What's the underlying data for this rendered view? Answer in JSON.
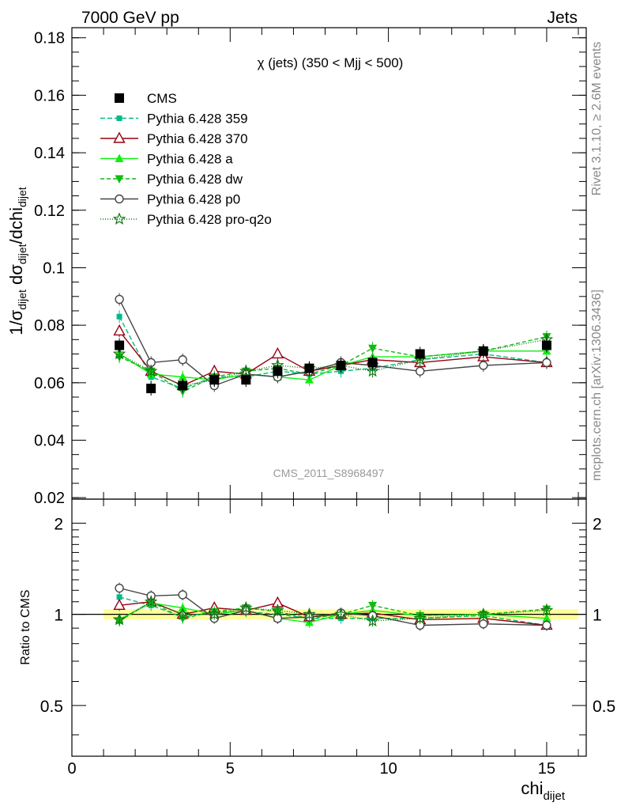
{
  "header": {
    "left": "7000 GeV pp",
    "right": "Jets"
  },
  "side_labels": {
    "rivet": "Rivet 3.1.10, ≥ 2.6M events",
    "mcplots": "mcplots.cern.ch [arXiv:1306.3436]"
  },
  "chart_data": [
    {
      "type": "scatter",
      "panel": "main",
      "title": "χ (jets) (350 < Mjj <  500)",
      "watermark": "CMS_2011_S8968497",
      "ylabel": "1/σ_dijet dσ_dijet/dchi_dijet",
      "xlabel": "",
      "xlim": [
        0,
        16.25
      ],
      "ylim": [
        0.0195,
        0.1835
      ],
      "yticks": [
        0.02,
        0.04,
        0.06,
        0.08,
        0.1,
        0.12,
        0.14,
        0.16,
        0.18
      ],
      "ytick_labels": [
        "0.02",
        "0.04",
        "0.06",
        "0.08",
        "0.1",
        "0.12",
        "0.14",
        "0.16",
        "0.18"
      ],
      "legend_position": "top-left",
      "x": [
        1.5,
        2.5,
        3.5,
        4.5,
        5.5,
        6.5,
        7.5,
        8.5,
        9.5,
        11.0,
        13.0,
        15.0
      ],
      "series": [
        {
          "name": "CMS",
          "color": "#000000",
          "marker": "square-filled",
          "dash": "none",
          "values": [
            0.073,
            0.058,
            0.059,
            0.061,
            0.061,
            0.064,
            0.065,
            0.066,
            0.067,
            0.07,
            0.071,
            0.073
          ]
        },
        {
          "name": "Pythia 6.428 359",
          "color": "#00bb88",
          "marker": "square-small",
          "dash": "6,3",
          "values": [
            0.083,
            0.062,
            0.058,
            0.062,
            0.062,
            0.064,
            0.063,
            0.064,
            0.065,
            0.068,
            0.07,
            0.067
          ]
        },
        {
          "name": "Pythia 6.428 370",
          "color": "#990011",
          "marker": "triangle-up-open",
          "dash": "none",
          "values": [
            0.078,
            0.064,
            0.059,
            0.064,
            0.063,
            0.07,
            0.064,
            0.066,
            0.068,
            0.067,
            0.069,
            0.067
          ]
        },
        {
          "name": "Pythia 6.428 a",
          "color": "#11ee11",
          "marker": "triangle-up-filled",
          "dash": "none",
          "values": [
            0.07,
            0.063,
            0.062,
            0.061,
            0.063,
            0.062,
            0.061,
            0.066,
            0.069,
            0.069,
            0.071,
            0.071
          ]
        },
        {
          "name": "Pythia 6.428 dw",
          "color": "#11bb11",
          "marker": "triangle-down-filled",
          "dash": "5,3",
          "values": [
            0.069,
            0.064,
            0.057,
            0.062,
            0.064,
            0.065,
            0.063,
            0.066,
            0.072,
            0.069,
            0.071,
            0.076
          ]
        },
        {
          "name": "Pythia 6.428 p0",
          "color": "#444444",
          "marker": "circle-open",
          "dash": "none",
          "values": [
            0.089,
            0.067,
            0.068,
            0.059,
            0.063,
            0.062,
            0.064,
            0.067,
            0.066,
            0.064,
            0.066,
            0.067
          ]
        },
        {
          "name": "Pythia 6.428 pro-q2o",
          "color": "#117711",
          "marker": "star-open",
          "dash": "1,2",
          "values": [
            0.07,
            0.064,
            0.059,
            0.061,
            0.064,
            0.066,
            0.065,
            0.066,
            0.064,
            0.068,
            0.071,
            0.075
          ]
        }
      ]
    },
    {
      "type": "scatter",
      "panel": "ratio",
      "ylabel": "Ratio to CMS",
      "xlabel": "chi_dijet",
      "xlim": [
        0,
        16.25
      ],
      "ylim": [
        0.34,
        2.4
      ],
      "log_y": true,
      "yticks": [
        0.5,
        1,
        2
      ],
      "ytick_labels": [
        "0.5",
        "1",
        "2"
      ],
      "xticks": [
        0,
        5,
        10,
        15
      ],
      "xtick_labels": [
        "0",
        "5",
        "10",
        "15"
      ],
      "reference_band": {
        "low": 0.96,
        "high": 1.04,
        "color": "#ffff99"
      },
      "x": [
        1.5,
        2.5,
        3.5,
        4.5,
        5.5,
        6.5,
        7.5,
        8.5,
        9.5,
        11.0,
        13.0,
        15.0
      ],
      "series": [
        {
          "name": "Pythia 6.428 359",
          "values": [
            1.14,
            1.07,
            0.98,
            1.02,
            1.02,
            1.0,
            0.97,
            0.97,
            0.97,
            0.97,
            0.99,
            0.92
          ]
        },
        {
          "name": "Pythia 6.428 370",
          "values": [
            1.07,
            1.1,
            1.0,
            1.05,
            1.03,
            1.09,
            0.98,
            1.0,
            1.01,
            0.96,
            0.97,
            0.92
          ]
        },
        {
          "name": "Pythia 6.428 a",
          "values": [
            0.96,
            1.09,
            1.05,
            1.0,
            1.03,
            0.97,
            0.94,
            1.0,
            1.03,
            0.99,
            1.0,
            0.97
          ]
        },
        {
          "name": "Pythia 6.428 dw",
          "values": [
            0.95,
            1.1,
            0.97,
            1.02,
            1.05,
            1.02,
            0.97,
            1.0,
            1.07,
            0.99,
            1.0,
            1.04
          ]
        },
        {
          "name": "Pythia 6.428 p0",
          "values": [
            1.22,
            1.15,
            1.16,
            0.97,
            1.03,
            0.97,
            0.98,
            1.01,
            0.99,
            0.92,
            0.93,
            0.92
          ]
        },
        {
          "name": "Pythia 6.428 pro-q2o",
          "values": [
            0.96,
            1.1,
            1.0,
            1.0,
            1.05,
            1.03,
            1.0,
            1.0,
            0.95,
            0.97,
            1.0,
            1.03
          ]
        }
      ]
    }
  ]
}
